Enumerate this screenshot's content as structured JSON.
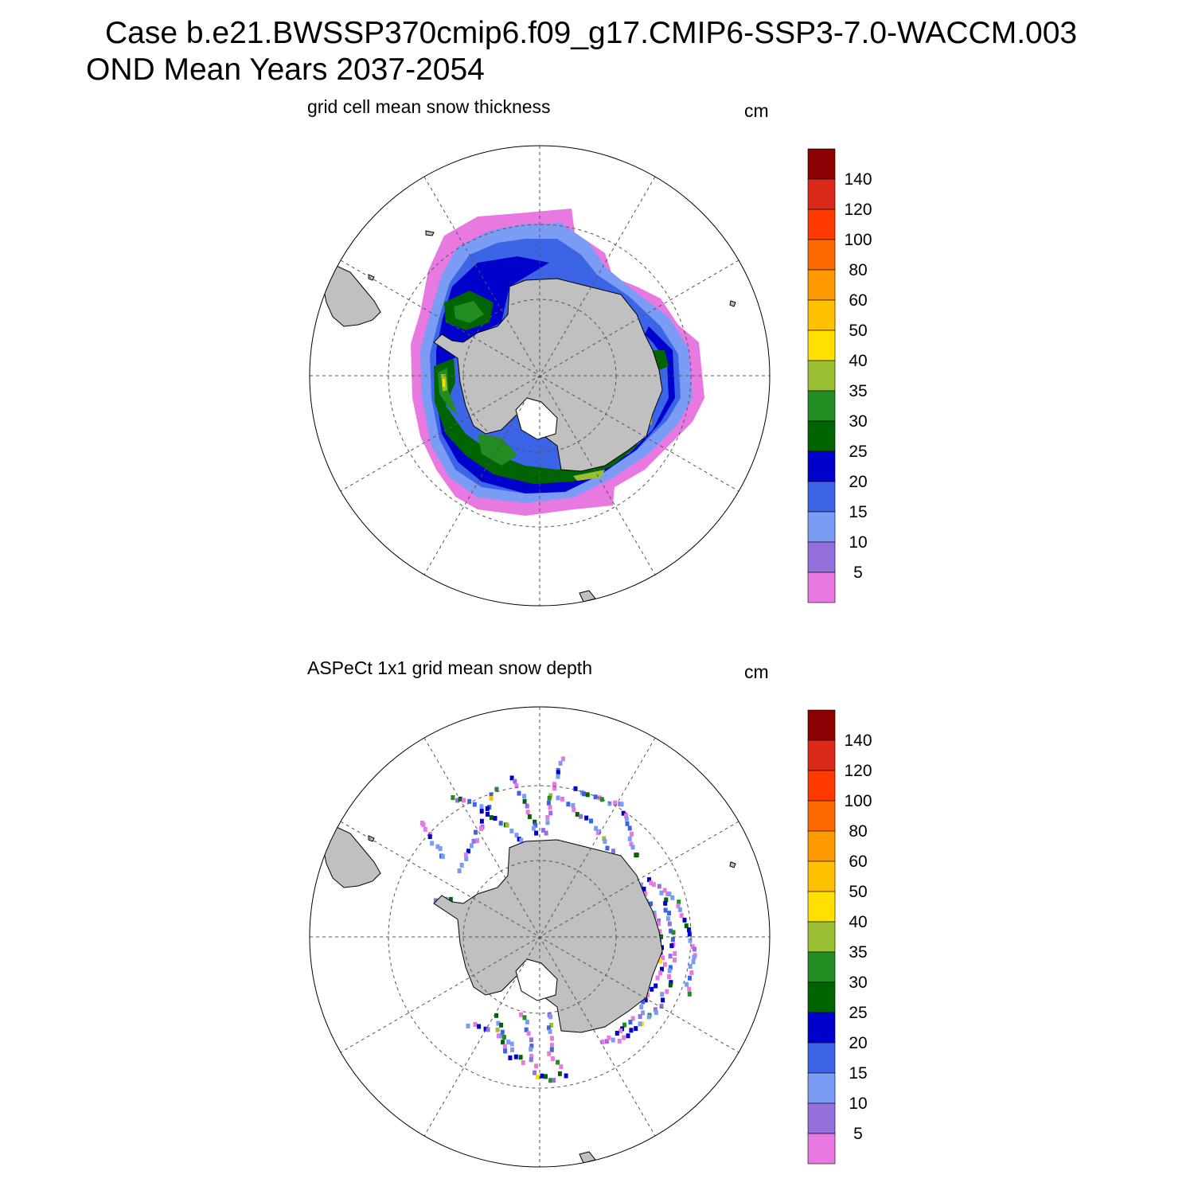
{
  "header": {
    "title_line1": "Case b.e21.BWSSP370cmip6.f09_g17.CMIP6-SSP3-7.0-WACCM.003",
    "title_line2": "OND Mean   Years 2037-2054"
  },
  "panels": [
    {
      "title": "grid cell mean snow thickness",
      "unit": "cm",
      "field": "model"
    },
    {
      "title": "ASPeCt 1x1 grid mean snow depth",
      "unit": "cm",
      "field": "observations"
    }
  ],
  "colorbar": {
    "labels": [
      "140",
      "120",
      "100",
      "80",
      "60",
      "50",
      "40",
      "35",
      "30",
      "25",
      "20",
      "15",
      "10",
      "5"
    ],
    "colors": [
      "#8b0000",
      "#dc2a1a",
      "#ff3a00",
      "#ff6a00",
      "#ff9900",
      "#ffc000",
      "#ffe000",
      "#9abf32",
      "#228b22",
      "#006400",
      "#0000cd",
      "#3c64e6",
      "#7a9cf5",
      "#9370db",
      "#e879e0"
    ]
  },
  "map": {
    "land_color": "#c0c0c0",
    "projection": "south polar stereographic"
  }
}
